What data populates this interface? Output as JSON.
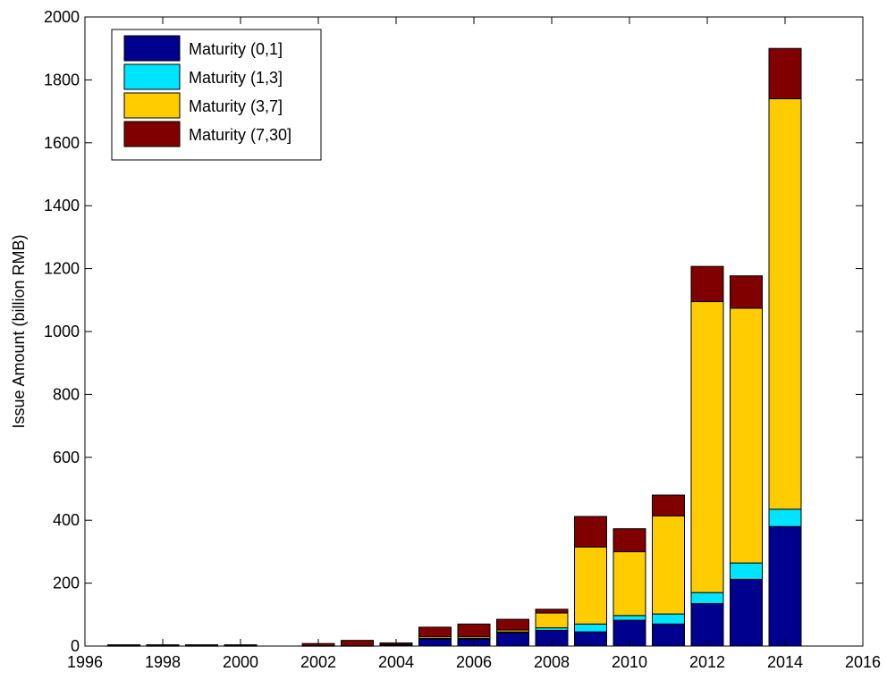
{
  "chart_data": {
    "type": "bar",
    "stacked": true,
    "x": [
      1997,
      1998,
      1999,
      2000,
      2001,
      2002,
      2003,
      2004,
      2005,
      2006,
      2007,
      2008,
      2009,
      2010,
      2011,
      2012,
      2013,
      2014
    ],
    "series": [
      {
        "name": "Maturity (0,1]",
        "color": "#00008f",
        "values": [
          1,
          1,
          1,
          1,
          0,
          1,
          1,
          3,
          22,
          22,
          42,
          50,
          45,
          82,
          70,
          135,
          212,
          380
        ]
      },
      {
        "name": "Maturity (1,3]",
        "color": "#00e5ff",
        "values": [
          0,
          0,
          0,
          0,
          0,
          0,
          0,
          1,
          3,
          3,
          3,
          8,
          25,
          15,
          32,
          35,
          52,
          55
        ]
      },
      {
        "name": "Maturity (3,7]",
        "color": "#ffcc00",
        "values": [
          0,
          0,
          0,
          0,
          0,
          0,
          0,
          1,
          5,
          5,
          6,
          47,
          245,
          203,
          312,
          925,
          810,
          1305
        ]
      },
      {
        "name": "Maturity (7,30]",
        "color": "#800000",
        "values": [
          3,
          3,
          3,
          3,
          0,
          7,
          17,
          5,
          30,
          40,
          34,
          12,
          97,
          73,
          66,
          112,
          103,
          160
        ]
      }
    ],
    "title": "",
    "xlabel": "",
    "ylabel": "Issue Amount (billion RMB)",
    "xlim": [
      1996,
      2016
    ],
    "ylim": [
      0,
      2000
    ],
    "xticks": [
      "1996",
      "1998",
      "2000",
      "2002",
      "2004",
      "2006",
      "2008",
      "2010",
      "2012",
      "2014",
      "2016"
    ],
    "yticks": [
      "0",
      "200",
      "400",
      "600",
      "800",
      "1000",
      "1200",
      "1400",
      "1600",
      "1800",
      "2000"
    ],
    "grid": false,
    "legend": "top-left"
  }
}
